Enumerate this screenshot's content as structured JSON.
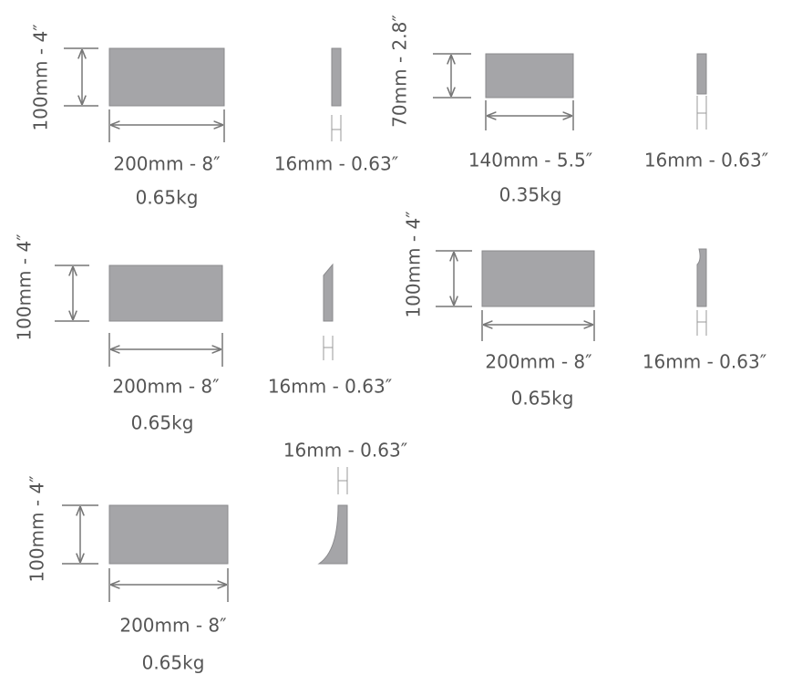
{
  "items": [
    {
      "height": "100mm - 4″",
      "width": "200mm - 8″",
      "weight": "0.65kg",
      "thickness": "16mm - 0.63″"
    },
    {
      "height": "70mm - 2.8″",
      "width": "140mm - 5.5″",
      "weight": "0.35kg",
      "thickness": "16mm - 0.63″"
    },
    {
      "height": "100mm - 4″",
      "width": "200mm - 8″",
      "weight": "0.65kg",
      "thickness": "16mm - 0.63″"
    },
    {
      "height": "100mm - 4″",
      "width": "200mm - 8″",
      "weight": "0.65kg",
      "thickness": "16mm - 0.63″"
    },
    {
      "height": "100mm - 4″",
      "width": "200mm - 8″",
      "weight": "0.65kg",
      "thickness": "16mm - 0.63″"
    }
  ]
}
